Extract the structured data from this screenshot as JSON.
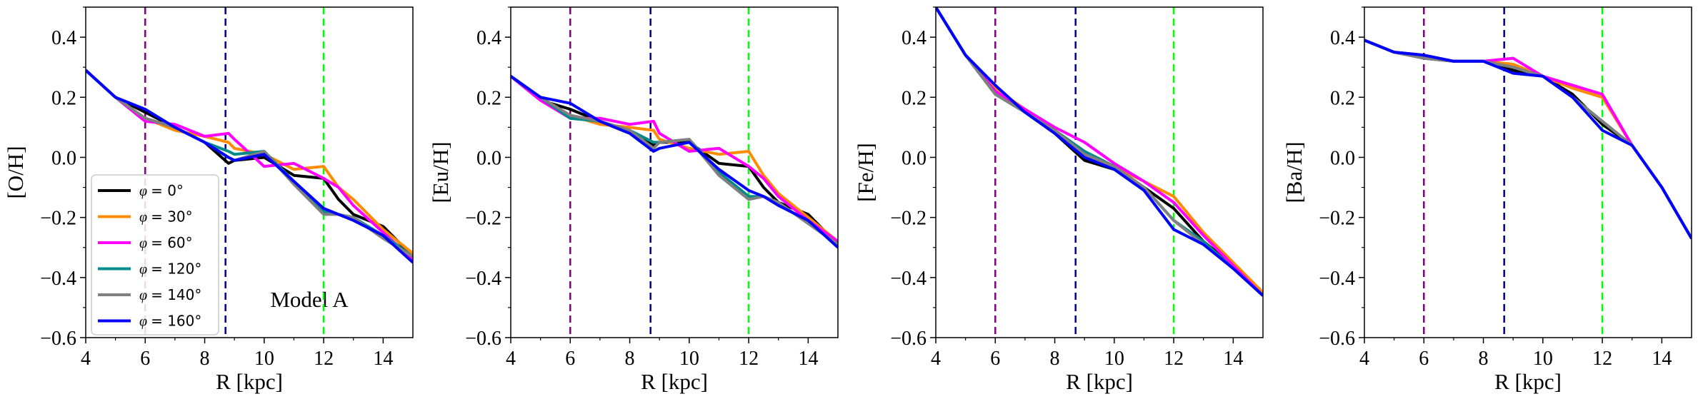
{
  "figure": {
    "annotation": "Model A",
    "legend_location": "lower-left of first panel"
  },
  "legend": [
    {
      "symbol": "φ",
      "value": "= 0°",
      "color": "#000000"
    },
    {
      "symbol": "φ",
      "value": "= 30°",
      "color": "#ff8c00"
    },
    {
      "symbol": "φ",
      "value": "= 60°",
      "color": "#ff00ff"
    },
    {
      "symbol": "φ",
      "value": "= 120°",
      "color": "#008b8b"
    },
    {
      "symbol": "φ",
      "value": "= 140°",
      "color": "#808080"
    },
    {
      "symbol": "φ",
      "value": "= 160°",
      "color": "#0000ff"
    }
  ],
  "chart_data": [
    {
      "type": "line",
      "xlabel": "R [kpc]",
      "ylabel": "[O/H]",
      "xlim": [
        4,
        15
      ],
      "ylim": [
        -0.6,
        0.5
      ],
      "xticks": [
        "4",
        "6",
        "8",
        "10",
        "12",
        "14"
      ],
      "yticks": [
        "0.4",
        "0.2",
        "0.0",
        "−0.2",
        "−0.4",
        "−0.6"
      ],
      "vlines": [
        {
          "x": 6,
          "color": "#800080"
        },
        {
          "x": 8.7,
          "color": "#00008b"
        },
        {
          "x": 12,
          "color": "#00ff00"
        }
      ],
      "series": [
        {
          "name": "φ = 0°",
          "color": "#000000",
          "x": [
            4,
            5,
            6,
            7,
            8,
            8.8,
            9,
            10,
            11,
            12,
            12.5,
            13,
            14,
            15
          ],
          "y": [
            0.29,
            0.2,
            0.15,
            0.1,
            0.05,
            -0.02,
            -0.01,
            0.0,
            -0.06,
            -0.07,
            -0.14,
            -0.19,
            -0.23,
            -0.33
          ]
        },
        {
          "name": "φ = 30°",
          "color": "#ff8c00",
          "x": [
            4,
            5,
            6,
            7,
            8,
            8.8,
            9,
            10,
            11,
            12,
            12.5,
            13,
            14,
            15
          ],
          "y": [
            0.29,
            0.2,
            0.13,
            0.09,
            0.07,
            0.05,
            0.03,
            0.01,
            -0.04,
            -0.03,
            -0.1,
            -0.14,
            -0.24,
            -0.32
          ]
        },
        {
          "name": "φ = 60°",
          "color": "#ff00ff",
          "x": [
            4,
            5,
            6,
            7,
            8,
            8.8,
            9,
            10,
            11,
            12,
            12.5,
            13,
            14,
            15
          ],
          "y": [
            0.29,
            0.2,
            0.12,
            0.11,
            0.07,
            0.08,
            0.06,
            -0.03,
            -0.02,
            -0.07,
            -0.1,
            -0.16,
            -0.25,
            -0.34
          ]
        },
        {
          "name": "φ = 120°",
          "color": "#008b8b",
          "x": [
            4,
            5,
            6,
            7,
            8,
            8.8,
            9,
            10,
            11,
            12,
            12.5,
            13,
            14,
            15
          ],
          "y": [
            0.29,
            0.2,
            0.13,
            0.1,
            0.05,
            0.02,
            0.01,
            0.02,
            -0.08,
            -0.18,
            -0.19,
            -0.2,
            -0.26,
            -0.33
          ]
        },
        {
          "name": "φ = 140°",
          "color": "#808080",
          "x": [
            4,
            5,
            6,
            7,
            8,
            8.8,
            9,
            10,
            11,
            12,
            12.5,
            13,
            14,
            15
          ],
          "y": [
            0.29,
            0.2,
            0.13,
            0.1,
            0.05,
            0.0,
            -0.01,
            0.02,
            -0.09,
            -0.19,
            -0.19,
            -0.2,
            -0.27,
            -0.33
          ]
        },
        {
          "name": "φ = 160°",
          "color": "#0000ff",
          "x": [
            4,
            5,
            6,
            7,
            8,
            8.8,
            9,
            10,
            11,
            12,
            12.5,
            13,
            14,
            15
          ],
          "y": [
            0.29,
            0.2,
            0.16,
            0.1,
            0.05,
            0.0,
            -0.01,
            0.01,
            -0.08,
            -0.17,
            -0.19,
            -0.21,
            -0.26,
            -0.35
          ]
        }
      ]
    },
    {
      "type": "line",
      "xlabel": "R [kpc]",
      "ylabel": "[Eu/H]",
      "xlim": [
        4,
        15
      ],
      "ylim": [
        -0.6,
        0.5
      ],
      "xticks": [
        "4",
        "6",
        "8",
        "10",
        "12",
        "14"
      ],
      "yticks": [
        "0.4",
        "0.2",
        "0.0",
        "−0.2",
        "−0.4",
        "−0.6"
      ],
      "vlines": [
        {
          "x": 6,
          "color": "#800080"
        },
        {
          "x": 8.7,
          "color": "#00008b"
        },
        {
          "x": 12,
          "color": "#00ff00"
        }
      ],
      "series": [
        {
          "name": "φ = 0°",
          "color": "#000000",
          "x": [
            4,
            5,
            6,
            7,
            8,
            8.8,
            9,
            10,
            11,
            12,
            12.5,
            13,
            14,
            15
          ],
          "y": [
            0.27,
            0.19,
            0.16,
            0.12,
            0.08,
            0.04,
            0.05,
            0.05,
            -0.02,
            -0.03,
            -0.1,
            -0.15,
            -0.19,
            -0.29
          ]
        },
        {
          "name": "φ = 30°",
          "color": "#ff8c00",
          "x": [
            4,
            5,
            6,
            7,
            8,
            8.8,
            9,
            10,
            11,
            12,
            12.5,
            13,
            14,
            15
          ],
          "y": [
            0.27,
            0.19,
            0.14,
            0.11,
            0.1,
            0.09,
            0.06,
            0.03,
            0.01,
            0.02,
            -0.06,
            -0.12,
            -0.2,
            -0.28
          ]
        },
        {
          "name": "φ = 60°",
          "color": "#ff00ff",
          "x": [
            4,
            5,
            6,
            7,
            8,
            8.8,
            9,
            10,
            11,
            12,
            12.5,
            13,
            14,
            15
          ],
          "y": [
            0.27,
            0.19,
            0.13,
            0.13,
            0.11,
            0.12,
            0.08,
            0.02,
            0.03,
            -0.03,
            -0.07,
            -0.13,
            -0.21,
            -0.28
          ]
        },
        {
          "name": "φ = 120°",
          "color": "#008b8b",
          "x": [
            4,
            5,
            6,
            7,
            8,
            8.8,
            9,
            10,
            11,
            12,
            12.5,
            13,
            14,
            15
          ],
          "y": [
            0.27,
            0.2,
            0.13,
            0.12,
            0.09,
            0.05,
            0.05,
            0.06,
            -0.05,
            -0.13,
            -0.13,
            -0.15,
            -0.22,
            -0.29
          ]
        },
        {
          "name": "φ = 140°",
          "color": "#808080",
          "x": [
            4,
            5,
            6,
            7,
            8,
            8.8,
            9,
            10,
            11,
            12,
            12.5,
            13,
            14,
            15
          ],
          "y": [
            0.27,
            0.2,
            0.14,
            0.12,
            0.09,
            0.03,
            0.05,
            0.06,
            -0.06,
            -0.14,
            -0.13,
            -0.15,
            -0.22,
            -0.29
          ]
        },
        {
          "name": "φ = 160°",
          "color": "#0000ff",
          "x": [
            4,
            5,
            6,
            7,
            8,
            8.8,
            9,
            10,
            11,
            12,
            12.5,
            13,
            14,
            15
          ],
          "y": [
            0.27,
            0.2,
            0.18,
            0.12,
            0.08,
            0.02,
            0.03,
            0.05,
            -0.04,
            -0.11,
            -0.13,
            -0.16,
            -0.21,
            -0.3
          ]
        }
      ]
    },
    {
      "type": "line",
      "xlabel": "R [kpc]",
      "ylabel": "[Fe/H]",
      "xlim": [
        4,
        15
      ],
      "ylim": [
        -0.6,
        0.5
      ],
      "xticks": [
        "4",
        "6",
        "8",
        "10",
        "12",
        "14"
      ],
      "yticks": [
        "0.4",
        "0.2",
        "0.0",
        "−0.2",
        "−0.4",
        "−0.6"
      ],
      "vlines": [
        {
          "x": 6,
          "color": "#800080"
        },
        {
          "x": 8.7,
          "color": "#00008b"
        },
        {
          "x": 12,
          "color": "#00ff00"
        }
      ],
      "series": [
        {
          "name": "φ = 0°",
          "color": "#000000",
          "x": [
            4,
            5,
            6,
            7,
            8,
            9,
            10,
            11,
            12,
            13,
            14,
            15
          ],
          "y": [
            0.5,
            0.34,
            0.23,
            0.15,
            0.08,
            -0.01,
            -0.04,
            -0.1,
            -0.17,
            -0.28,
            -0.36,
            -0.46
          ]
        },
        {
          "name": "φ = 30°",
          "color": "#ff8c00",
          "x": [
            4,
            5,
            6,
            7,
            8,
            9,
            10,
            11,
            12,
            13,
            14,
            15
          ],
          "y": [
            0.5,
            0.34,
            0.23,
            0.16,
            0.09,
            0.02,
            -0.03,
            -0.08,
            -0.13,
            -0.25,
            -0.35,
            -0.45
          ]
        },
        {
          "name": "φ = 60°",
          "color": "#ff00ff",
          "x": [
            4,
            5,
            6,
            7,
            8,
            9,
            10,
            11,
            12,
            13,
            14,
            15
          ],
          "y": [
            0.5,
            0.34,
            0.22,
            0.16,
            0.1,
            0.05,
            -0.02,
            -0.08,
            -0.15,
            -0.26,
            -0.36,
            -0.46
          ]
        },
        {
          "name": "φ = 120°",
          "color": "#008b8b",
          "x": [
            4,
            5,
            6,
            7,
            8,
            9,
            10,
            11,
            12,
            13,
            14,
            15
          ],
          "y": [
            0.5,
            0.34,
            0.21,
            0.15,
            0.09,
            0.02,
            -0.03,
            -0.1,
            -0.21,
            -0.28,
            -0.37,
            -0.46
          ]
        },
        {
          "name": "φ = 140°",
          "color": "#808080",
          "x": [
            4,
            5,
            6,
            7,
            8,
            9,
            10,
            11,
            12,
            13,
            14,
            15
          ],
          "y": [
            0.5,
            0.34,
            0.21,
            0.15,
            0.09,
            0.01,
            -0.03,
            -0.1,
            -0.21,
            -0.29,
            -0.37,
            -0.46
          ]
        },
        {
          "name": "φ = 160°",
          "color": "#0000ff",
          "x": [
            4,
            5,
            6,
            7,
            8,
            9,
            10,
            11,
            12,
            13,
            14,
            15
          ],
          "y": [
            0.5,
            0.34,
            0.24,
            0.15,
            0.08,
            0.0,
            -0.04,
            -0.11,
            -0.24,
            -0.29,
            -0.37,
            -0.46
          ]
        }
      ]
    },
    {
      "type": "line",
      "xlabel": "R [kpc]",
      "ylabel": "[Ba/H]",
      "xlim": [
        4,
        15
      ],
      "ylim": [
        -0.6,
        0.5
      ],
      "xticks": [
        "4",
        "6",
        "8",
        "10",
        "12",
        "14"
      ],
      "yticks": [
        "0.4",
        "0.2",
        "0.0",
        "−0.2",
        "−0.4",
        "−0.6"
      ],
      "vlines": [
        {
          "x": 6,
          "color": "#800080"
        },
        {
          "x": 8.7,
          "color": "#00008b"
        },
        {
          "x": 12,
          "color": "#00ff00"
        }
      ],
      "series": [
        {
          "name": "φ = 0°",
          "color": "#000000",
          "x": [
            4,
            5,
            6,
            7,
            8,
            9,
            10,
            11,
            12,
            13,
            14,
            15
          ],
          "y": [
            0.39,
            0.35,
            0.34,
            0.32,
            0.32,
            0.29,
            0.27,
            0.21,
            0.11,
            0.04,
            -0.1,
            -0.27
          ]
        },
        {
          "name": "φ = 30°",
          "color": "#ff8c00",
          "x": [
            4,
            5,
            6,
            7,
            8,
            9,
            10,
            11,
            12,
            13,
            14,
            15
          ],
          "y": [
            0.39,
            0.35,
            0.33,
            0.32,
            0.32,
            0.31,
            0.27,
            0.23,
            0.2,
            0.04,
            -0.1,
            -0.27
          ]
        },
        {
          "name": "φ = 60°",
          "color": "#ff00ff",
          "x": [
            4,
            5,
            6,
            7,
            8,
            9,
            10,
            11,
            12,
            13,
            14,
            15
          ],
          "y": [
            0.39,
            0.35,
            0.33,
            0.32,
            0.32,
            0.33,
            0.27,
            0.24,
            0.21,
            0.04,
            -0.1,
            -0.27
          ]
        },
        {
          "name": "φ = 120°",
          "color": "#008b8b",
          "x": [
            4,
            5,
            6,
            7,
            8,
            9,
            10,
            11,
            12,
            13,
            14,
            15
          ],
          "y": [
            0.39,
            0.35,
            0.33,
            0.32,
            0.32,
            0.3,
            0.27,
            0.2,
            0.12,
            0.04,
            -0.1,
            -0.27
          ]
        },
        {
          "name": "φ = 140°",
          "color": "#808080",
          "x": [
            4,
            5,
            6,
            7,
            8,
            9,
            10,
            11,
            12,
            13,
            14,
            15
          ],
          "y": [
            0.39,
            0.35,
            0.33,
            0.32,
            0.32,
            0.3,
            0.27,
            0.2,
            0.12,
            0.04,
            -0.1,
            -0.27
          ]
        },
        {
          "name": "φ = 160°",
          "color": "#0000ff",
          "x": [
            4,
            5,
            6,
            7,
            8,
            9,
            10,
            11,
            12,
            13,
            14,
            15
          ],
          "y": [
            0.39,
            0.35,
            0.34,
            0.32,
            0.32,
            0.28,
            0.27,
            0.2,
            0.09,
            0.04,
            -0.1,
            -0.27
          ]
        }
      ]
    }
  ]
}
